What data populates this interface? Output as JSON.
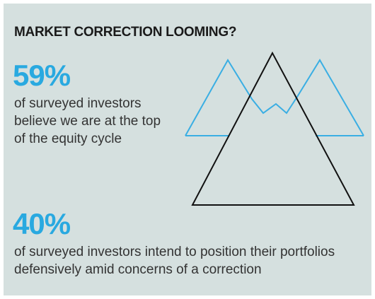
{
  "header": {
    "title": "MARKET CORRECTION LOOMING?"
  },
  "stats": [
    {
      "value": "59%",
      "lines": [
        "of surveyed investors",
        "believe we are at the top",
        "of the equity cycle"
      ]
    },
    {
      "value": "40%",
      "lines": [
        "of surveyed investors intend to position their portfolios",
        "defensively amid concerns of a correction"
      ]
    }
  ]
}
